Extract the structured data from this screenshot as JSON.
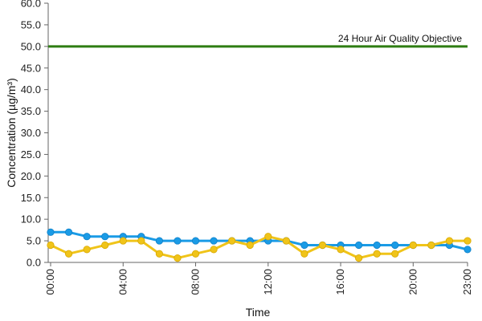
{
  "chart_data": {
    "type": "line",
    "title": "",
    "xlabel": "Time",
    "ylabel": "Concentration (µg/m³)",
    "ylim": [
      0,
      60
    ],
    "yticks": [
      "0.0",
      "5.0",
      "10.0",
      "15.0",
      "20.0",
      "25.0",
      "30.0",
      "35.0",
      "40.0",
      "45.0",
      "50.0",
      "55.0",
      "60.0"
    ],
    "x": [
      "00:00",
      "01:00",
      "02:00",
      "03:00",
      "04:00",
      "05:00",
      "06:00",
      "07:00",
      "08:00",
      "09:00",
      "10:00",
      "11:00",
      "12:00",
      "13:00",
      "14:00",
      "15:00",
      "16:00",
      "17:00",
      "18:00",
      "19:00",
      "20:00",
      "21:00",
      "22:00",
      "23:00"
    ],
    "xticks": [
      "00:00",
      "04:00",
      "08:00",
      "12:00",
      "16:00",
      "20:00",
      "23:00"
    ],
    "grid": false,
    "legend": "none",
    "series": [
      {
        "color": "#1a9be6",
        "values": [
          7,
          7,
          6,
          6,
          6,
          6,
          5,
          5,
          5,
          5,
          5,
          5,
          5,
          5,
          4,
          4,
          4,
          4,
          4,
          4,
          4,
          4,
          4,
          3
        ]
      },
      {
        "color": "#f0c419",
        "values": [
          4,
          2,
          3,
          4,
          5,
          5,
          2,
          1,
          2,
          3,
          5,
          4,
          6,
          5,
          2,
          4,
          3,
          1,
          2,
          2,
          4,
          4,
          5,
          5
        ]
      }
    ],
    "reference_line": {
      "label": "24 Hour Air Quality Objective",
      "value": 50,
      "color": "#2e7d12"
    }
  }
}
